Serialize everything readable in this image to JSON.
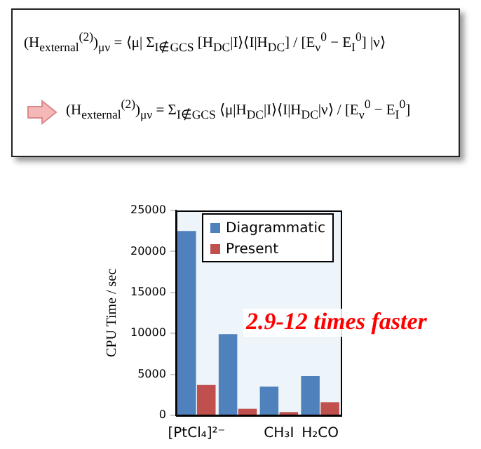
{
  "chart_data": {
    "type": "bar",
    "ylabel": "CPU Time / sec",
    "categories": [
      "[PtCl₄]²⁻",
      null,
      "CH₃I",
      "H₂CO"
    ],
    "series": [
      {
        "name": "Diagrammatic",
        "color": "#4f81bd",
        "values": [
          22500,
          9900,
          3500,
          4800
        ]
      },
      {
        "name": "Present",
        "color": "#c0504d",
        "values": [
          3700,
          800,
          400,
          1600
        ]
      }
    ],
    "ylim": [
      0,
      25000
    ],
    "yticks": [
      0,
      5000,
      10000,
      15000,
      20000,
      25000
    ],
    "grid": false,
    "legend": "top right",
    "annotations": [
      "(H$_{external}$$^{(2)}$)$_{μν}$ = ⟨μ| Σ$_{I∉GCS}$ [H$_{DC}$|I⟩⟨I|H$_{DC}$] / [E$_{ν}$$^{0}$ − E$_{I}$$^{0}$] |ν⟩",
      "(H$_{external}$$^{(2)}$)$_{μν}$ = Σ$_{I∉GCS}$ ⟨μ|H$_{DC}$|I⟩⟨I|H$_{DC}$|ν⟩ / [E$_{ν}$$^{0}$ − E$_{I}$$^{0}$]",
      "2.9-12 times faster"
    ]
  }
}
